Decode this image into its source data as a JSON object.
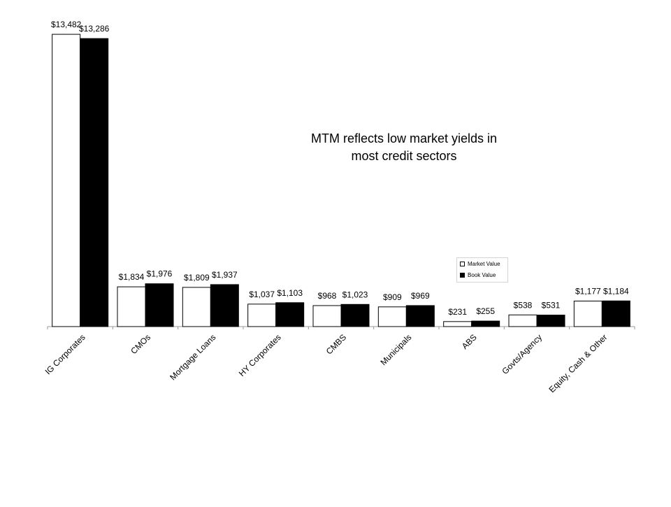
{
  "chart_data": {
    "type": "bar",
    "annotation": [
      "MTM reflects low market yields in",
      "most credit sectors"
    ],
    "categories": [
      "IG Corporates",
      "CMOs",
      "Mortgage Loans",
      "HY Corporates",
      "CMBS",
      "Municipals",
      "ABS",
      "Govts/Agency",
      "Equity, Cash & Other"
    ],
    "series": [
      {
        "name": "Market Value",
        "color": "#ffffff",
        "values": [
          13482,
          1834,
          1809,
          1037,
          968,
          909,
          231,
          538,
          1177
        ],
        "labels": [
          "$13,482",
          "$1,834",
          "$1,809",
          "$1,037",
          "$968",
          "$909",
          "$231",
          "$538",
          "$1,177"
        ]
      },
      {
        "name": "Book Value",
        "color": "#000000",
        "values": [
          13286,
          1976,
          1937,
          1103,
          1023,
          969,
          255,
          531,
          1184
        ],
        "labels": [
          "$13,286",
          "$1,976",
          "$1,937",
          "$1,103",
          "$1,023",
          "$969",
          "$255",
          "$531",
          "$1,184"
        ]
      }
    ],
    "ylim": [
      0,
      14000
    ],
    "grid": false,
    "legend_position": "right"
  }
}
